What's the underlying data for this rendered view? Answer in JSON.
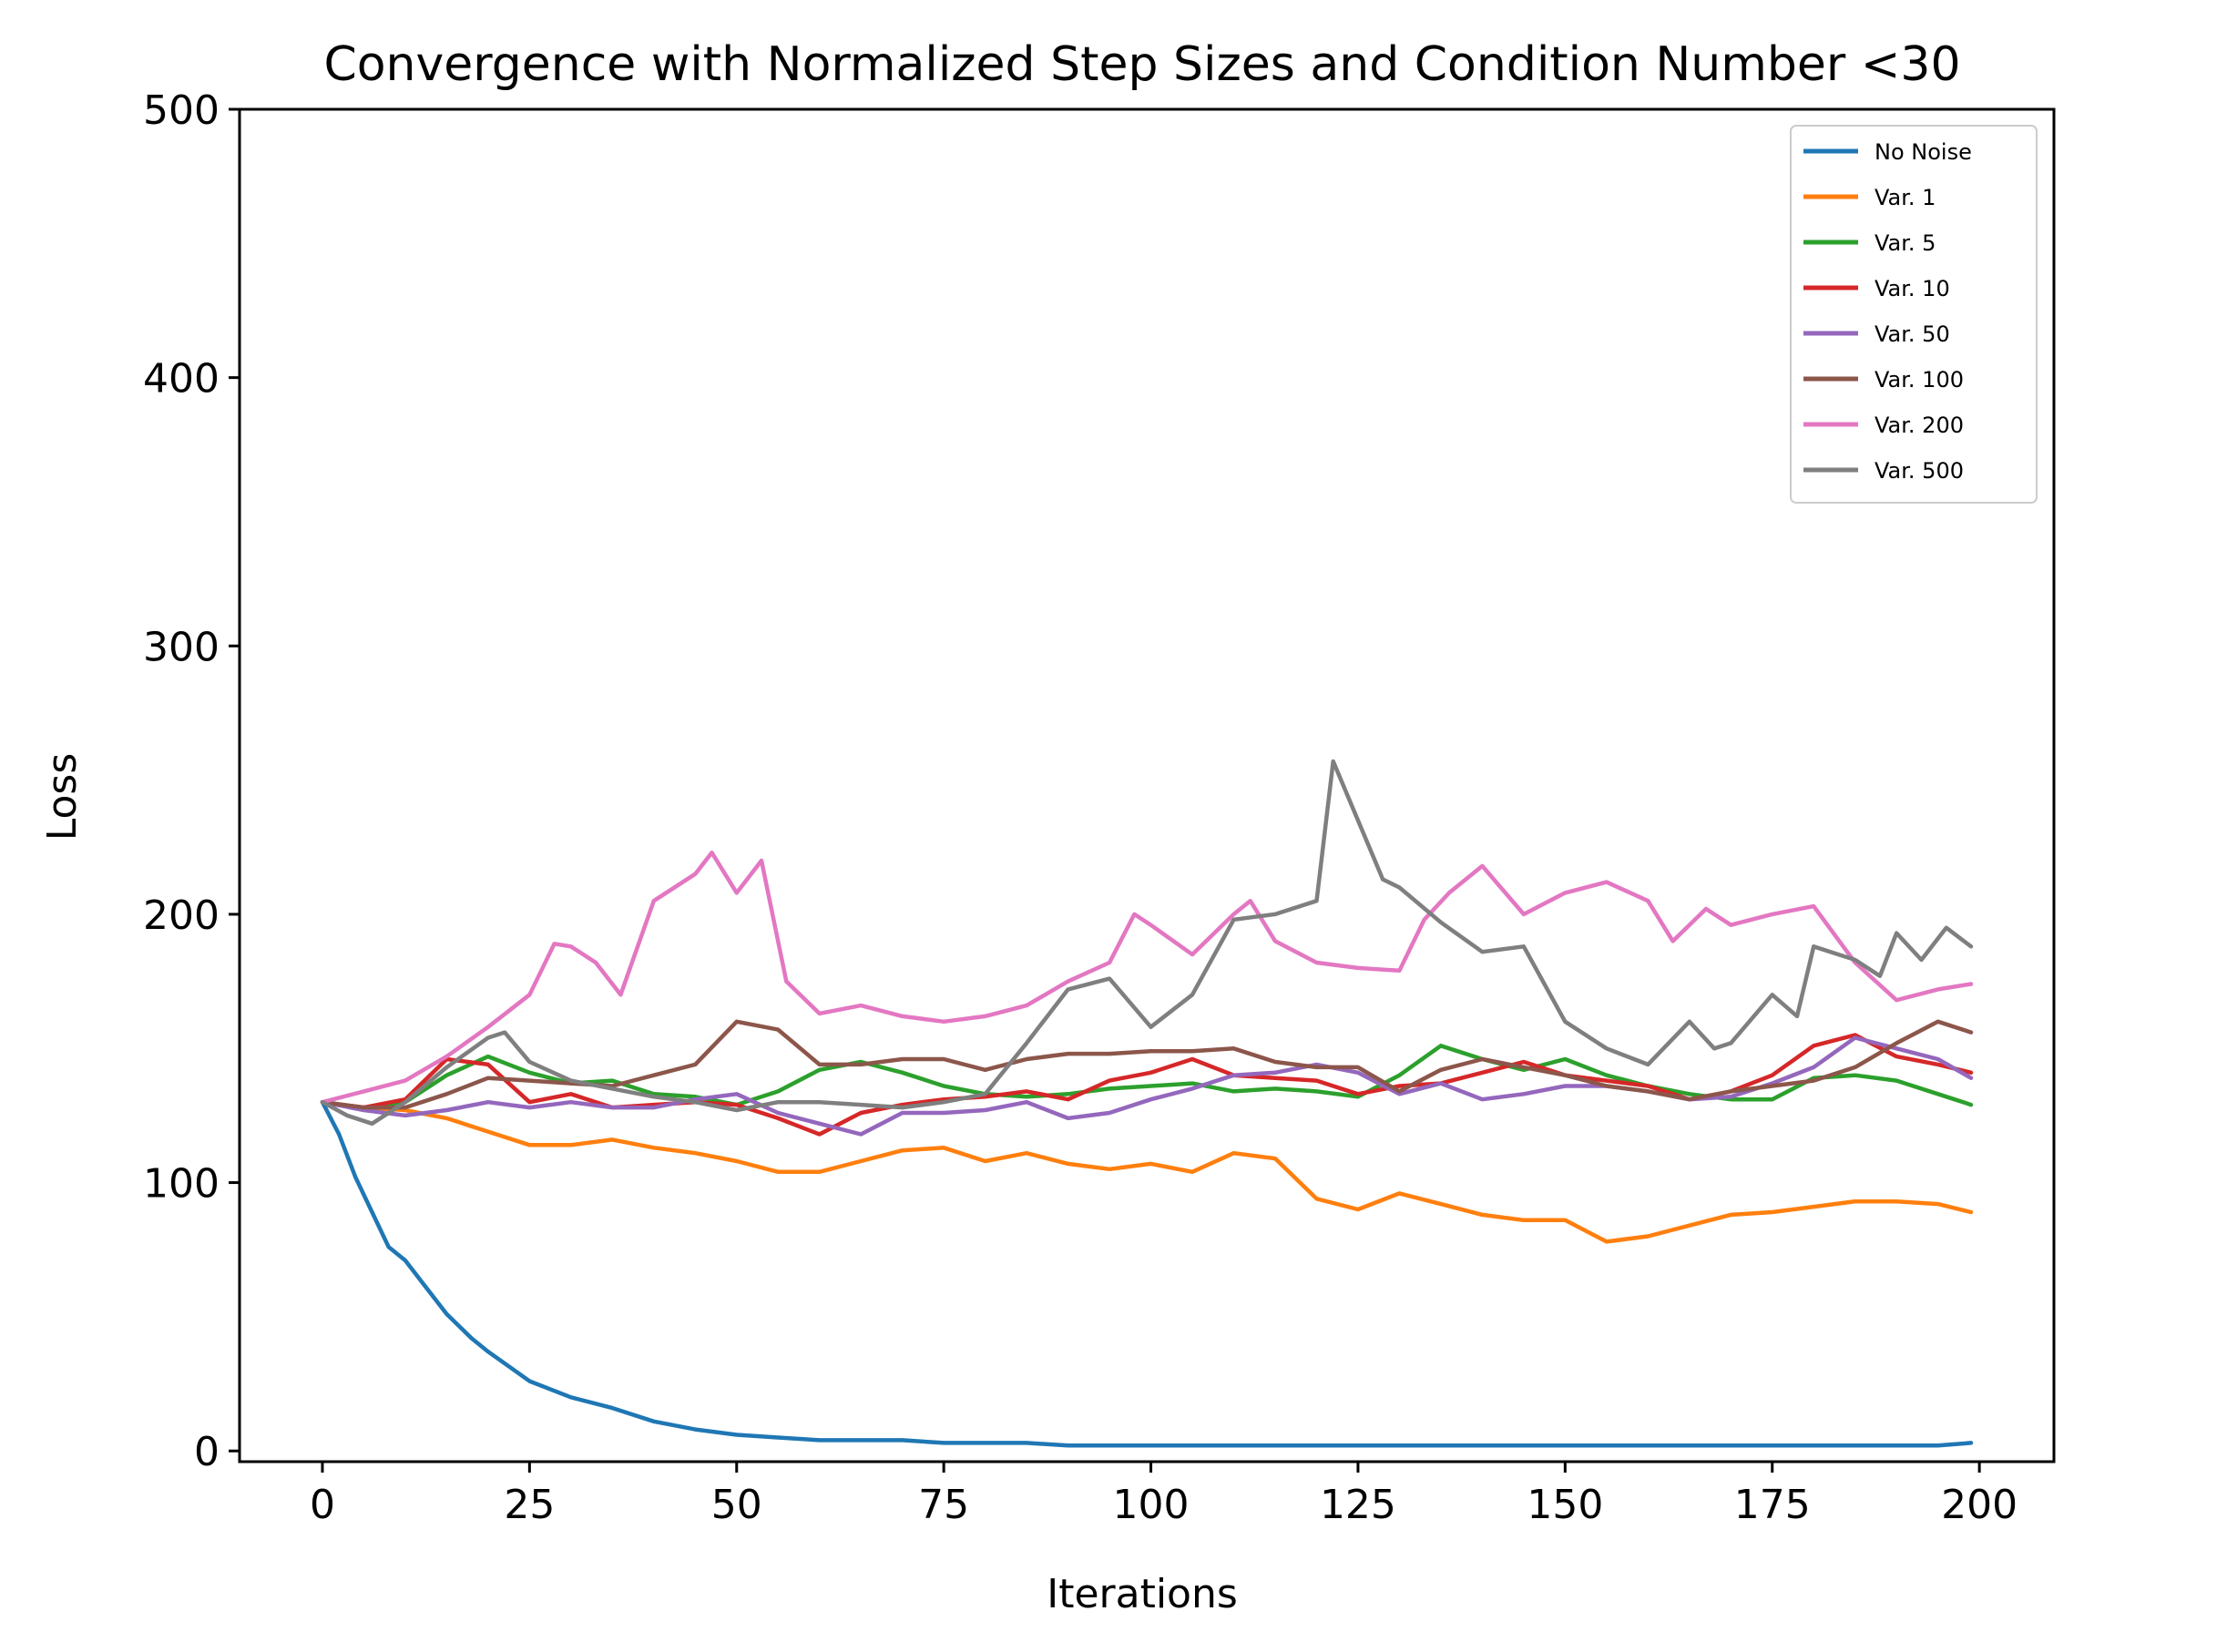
{
  "chart_data": {
    "type": "line",
    "title": "Convergence with Normalized Step Sizes and Condition Number <30",
    "xlabel": "Iterations",
    "ylabel": "Loss",
    "xlim": [
      -10,
      209
    ],
    "ylim": [
      -4,
      500
    ],
    "xticks": [
      0,
      25,
      50,
      75,
      100,
      125,
      150,
      175,
      200
    ],
    "yticks": [
      0,
      100,
      200,
      300,
      400,
      500
    ],
    "grid": false,
    "legend_position": "top-right",
    "series": [
      {
        "name": "No Noise",
        "color": "#1f77b4",
        "x": [
          0,
          2,
          4,
          6,
          8,
          10,
          12,
          15,
          18,
          20,
          25,
          30,
          35,
          40,
          45,
          50,
          55,
          60,
          65,
          70,
          75,
          80,
          85,
          90,
          95,
          100,
          105,
          110,
          115,
          120,
          125,
          130,
          135,
          140,
          145,
          150,
          155,
          160,
          165,
          170,
          175,
          180,
          185,
          190,
          195,
          199
        ],
        "y": [
          130,
          118,
          102,
          89,
          76,
          71,
          63,
          51,
          42,
          37,
          26,
          20,
          16,
          11,
          8,
          6,
          5,
          4,
          4,
          4,
          3,
          3,
          3,
          2,
          2,
          2,
          2,
          2,
          2,
          2,
          2,
          2,
          2,
          2,
          2,
          2,
          2,
          2,
          2,
          2,
          2,
          2,
          2,
          2,
          2,
          3
        ]
      },
      {
        "name": "Var. 1",
        "color": "#ff7f0e",
        "x": [
          0,
          5,
          10,
          15,
          20,
          25,
          30,
          35,
          40,
          45,
          50,
          55,
          60,
          65,
          70,
          75,
          80,
          85,
          90,
          95,
          100,
          105,
          110,
          115,
          120,
          125,
          130,
          135,
          140,
          145,
          150,
          155,
          160,
          165,
          170,
          175,
          180,
          185,
          190,
          195,
          199
        ],
        "y": [
          130,
          128,
          127,
          124,
          119,
          114,
          114,
          116,
          113,
          111,
          108,
          104,
          104,
          108,
          112,
          113,
          108,
          111,
          107,
          105,
          107,
          104,
          111,
          109,
          94,
          90,
          96,
          92,
          88,
          86,
          86,
          78,
          80,
          84,
          88,
          89,
          91,
          93,
          93,
          92,
          89
        ]
      },
      {
        "name": "Var. 5",
        "color": "#2ca02c",
        "x": [
          0,
          5,
          10,
          15,
          20,
          25,
          30,
          35,
          40,
          45,
          50,
          55,
          60,
          65,
          70,
          75,
          80,
          85,
          90,
          95,
          100,
          105,
          110,
          115,
          120,
          125,
          130,
          135,
          140,
          145,
          150,
          155,
          160,
          165,
          170,
          175,
          180,
          185,
          190,
          195,
          199
        ],
        "y": [
          130,
          128,
          130,
          140,
          147,
          141,
          137,
          138,
          133,
          132,
          129,
          134,
          142,
          145,
          141,
          136,
          133,
          132,
          133,
          135,
          136,
          137,
          134,
          135,
          134,
          132,
          140,
          151,
          146,
          142,
          146,
          140,
          136,
          133,
          131,
          131,
          139,
          140,
          138,
          133,
          129
        ]
      },
      {
        "name": "Var. 10",
        "color": "#d62728",
        "x": [
          0,
          5,
          10,
          15,
          20,
          25,
          30,
          35,
          40,
          45,
          50,
          55,
          60,
          65,
          70,
          75,
          80,
          85,
          90,
          95,
          100,
          105,
          110,
          115,
          120,
          125,
          130,
          135,
          140,
          145,
          150,
          155,
          160,
          165,
          170,
          175,
          180,
          185,
          190,
          195,
          199
        ],
        "y": [
          130,
          128,
          131,
          146,
          144,
          130,
          133,
          128,
          129,
          130,
          129,
          124,
          118,
          126,
          129,
          131,
          132,
          134,
          131,
          138,
          141,
          146,
          140,
          139,
          138,
          133,
          136,
          137,
          141,
          145,
          140,
          138,
          136,
          131,
          134,
          140,
          151,
          155,
          147,
          144,
          141
        ]
      },
      {
        "name": "Var. 50",
        "color": "#9467bd",
        "x": [
          0,
          5,
          10,
          15,
          20,
          25,
          30,
          35,
          40,
          45,
          50,
          55,
          60,
          65,
          70,
          75,
          80,
          85,
          90,
          95,
          100,
          105,
          110,
          115,
          120,
          125,
          130,
          135,
          140,
          145,
          150,
          155,
          160,
          165,
          170,
          175,
          180,
          185,
          190,
          195,
          199
        ],
        "y": [
          130,
          127,
          125,
          127,
          130,
          128,
          130,
          128,
          128,
          131,
          133,
          126,
          122,
          118,
          126,
          126,
          127,
          130,
          124,
          126,
          131,
          135,
          140,
          141,
          144,
          141,
          133,
          137,
          131,
          133,
          136,
          136,
          134,
          131,
          132,
          137,
          143,
          154,
          150,
          146,
          139
        ]
      },
      {
        "name": "Var. 100",
        "color": "#8c564b",
        "x": [
          0,
          5,
          10,
          15,
          20,
          25,
          30,
          35,
          40,
          45,
          50,
          55,
          60,
          65,
          70,
          75,
          80,
          85,
          90,
          95,
          100,
          105,
          110,
          115,
          120,
          125,
          130,
          135,
          140,
          145,
          150,
          155,
          160,
          165,
          170,
          175,
          180,
          185,
          190,
          195,
          199
        ],
        "y": [
          130,
          128,
          128,
          133,
          139,
          138,
          137,
          136,
          140,
          144,
          160,
          157,
          144,
          144,
          146,
          146,
          142,
          146,
          148,
          148,
          149,
          149,
          150,
          145,
          143,
          143,
          134,
          142,
          146,
          143,
          140,
          136,
          134,
          131,
          134,
          136,
          138,
          143,
          152,
          160,
          156
        ]
      },
      {
        "name": "Var. 200",
        "color": "#e377c2",
        "x": [
          0,
          5,
          10,
          15,
          20,
          25,
          28,
          30,
          33,
          36,
          40,
          45,
          47,
          50,
          53,
          56,
          60,
          65,
          70,
          75,
          80,
          85,
          90,
          95,
          98,
          100,
          105,
          110,
          112,
          115,
          120,
          125,
          130,
          133,
          136,
          140,
          145,
          150,
          155,
          160,
          163,
          167,
          170,
          175,
          180,
          185,
          190,
          195,
          199
        ],
        "y": [
          130,
          134,
          138,
          147,
          158,
          170,
          189,
          188,
          182,
          170,
          205,
          215,
          223,
          208,
          220,
          175,
          163,
          166,
          162,
          160,
          162,
          166,
          175,
          182,
          200,
          196,
          185,
          200,
          205,
          190,
          182,
          180,
          179,
          198,
          208,
          218,
          200,
          208,
          212,
          205,
          190,
          202,
          196,
          200,
          203,
          182,
          168,
          172,
          174
        ]
      },
      {
        "name": "Var. 500",
        "color": "#7f7f7f",
        "x": [
          0,
          3,
          6,
          10,
          15,
          20,
          22,
          25,
          30,
          35,
          40,
          45,
          50,
          55,
          60,
          65,
          70,
          75,
          80,
          85,
          90,
          95,
          100,
          105,
          110,
          115,
          120,
          122,
          125,
          128,
          130,
          135,
          140,
          145,
          150,
          155,
          160,
          165,
          168,
          170,
          175,
          178,
          180,
          185,
          188,
          190,
          193,
          196,
          199
        ],
        "y": [
          130,
          125,
          122,
          130,
          143,
          154,
          156,
          145,
          138,
          135,
          132,
          130,
          127,
          130,
          130,
          129,
          128,
          130,
          133,
          152,
          172,
          176,
          158,
          170,
          198,
          200,
          205,
          257,
          235,
          213,
          210,
          197,
          186,
          188,
          160,
          150,
          144,
          160,
          150,
          152,
          170,
          162,
          188,
          183,
          177,
          193,
          183,
          195,
          188
        ]
      }
    ]
  }
}
